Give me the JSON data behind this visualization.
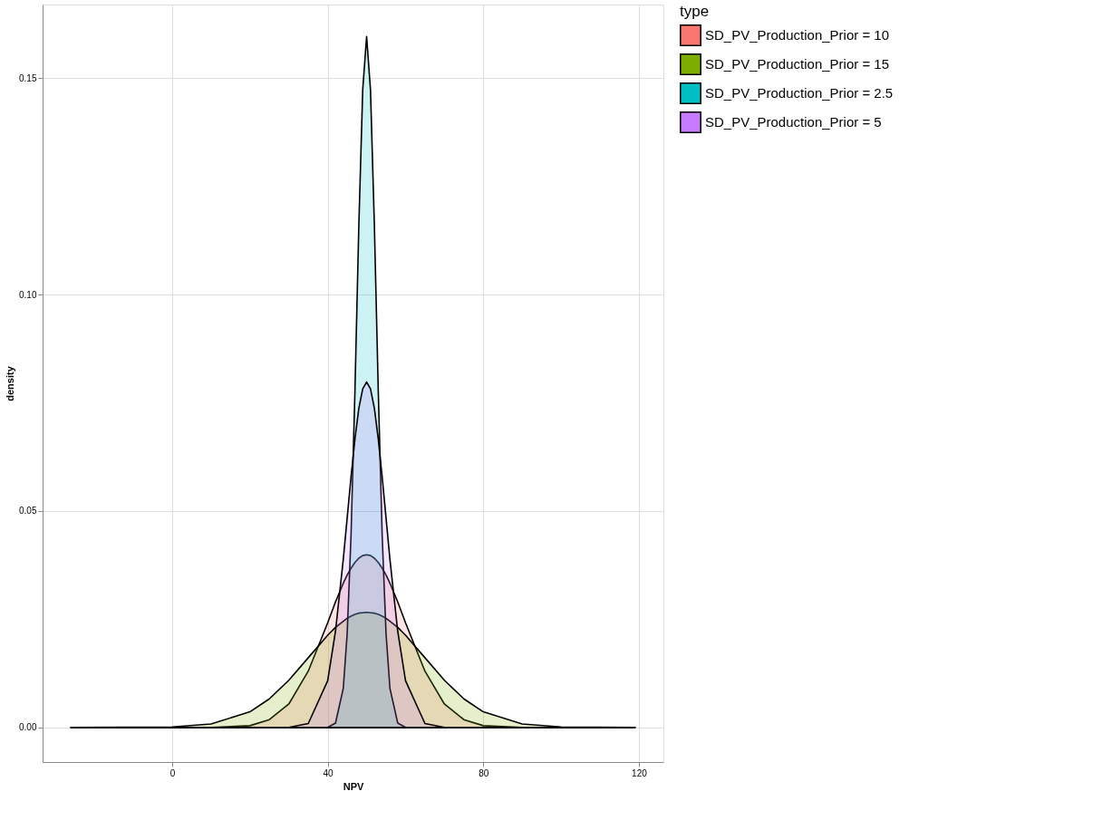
{
  "chart_data": {
    "type": "area",
    "xlabel": "NPV",
    "ylabel": "density",
    "legend_title": "type",
    "legend": "right",
    "grid": true,
    "xlim": [
      -33.3,
      126.3
    ],
    "ylim": [
      -0.008,
      0.167
    ],
    "xticks": [
      0,
      40,
      80,
      120
    ],
    "yticks": [
      {
        "value": 0,
        "label": "0.00"
      },
      {
        "value": 0.05,
        "label": "0.05"
      },
      {
        "value": 0.1,
        "label": "0.10"
      },
      {
        "value": 0.15,
        "label": "0.15"
      }
    ],
    "x": [
      -26,
      0,
      10,
      20,
      25,
      30,
      35,
      40,
      42,
      44,
      45,
      46,
      47,
      48,
      49,
      50,
      51,
      52,
      53,
      54,
      55,
      56,
      58,
      60,
      65,
      70,
      75,
      80,
      90,
      100,
      119
    ],
    "series": [
      {
        "name": "SD_PV_Production_Prior = 10",
        "color": "#f8766d",
        "values": [
          0,
          0,
          0,
          0.0004,
          0.0018,
          0.0054,
          0.013,
          0.0242,
          0.029,
          0.0333,
          0.0352,
          0.0368,
          0.0381,
          0.0391,
          0.0397,
          0.0399,
          0.0397,
          0.0391,
          0.0381,
          0.0368,
          0.0352,
          0.0333,
          0.029,
          0.0242,
          0.013,
          0.0054,
          0.0018,
          0.0004,
          0,
          0,
          0
        ]
      },
      {
        "name": "SD_PV_Production_Prior = 15",
        "color": "#7cae00",
        "values": [
          0,
          0.0001,
          0.0008,
          0.0036,
          0.0066,
          0.0109,
          0.0161,
          0.0213,
          0.0231,
          0.0245,
          0.0252,
          0.0257,
          0.0261,
          0.0264,
          0.0265,
          0.0266,
          0.0265,
          0.0264,
          0.0261,
          0.0257,
          0.0252,
          0.0245,
          0.0231,
          0.0213,
          0.0161,
          0.0109,
          0.0066,
          0.0036,
          0.0008,
          0.0001,
          0
        ]
      },
      {
        "name": "SD_PV_Production_Prior = 2.5",
        "color": "#00bfc4",
        "values": [
          0,
          0,
          0,
          0,
          0,
          0,
          0,
          0,
          0.001,
          0.009,
          0.0216,
          0.0444,
          0.0777,
          0.1159,
          0.1473,
          0.1596,
          0.1473,
          0.1159,
          0.0777,
          0.0444,
          0.0216,
          0.009,
          0.001,
          0,
          0,
          0,
          0,
          0,
          0,
          0,
          0
        ]
      },
      {
        "name": "SD_PV_Production_Prior = 5",
        "color": "#c77cff",
        "values": [
          0,
          0,
          0,
          0,
          0,
          0,
          0.0009,
          0.0108,
          0.0222,
          0.0388,
          0.0484,
          0.0579,
          0.0666,
          0.0737,
          0.0782,
          0.0798,
          0.0782,
          0.0737,
          0.0666,
          0.0579,
          0.0484,
          0.0388,
          0.0222,
          0.0108,
          0.0009,
          0,
          0,
          0,
          0,
          0,
          0
        ]
      }
    ]
  }
}
